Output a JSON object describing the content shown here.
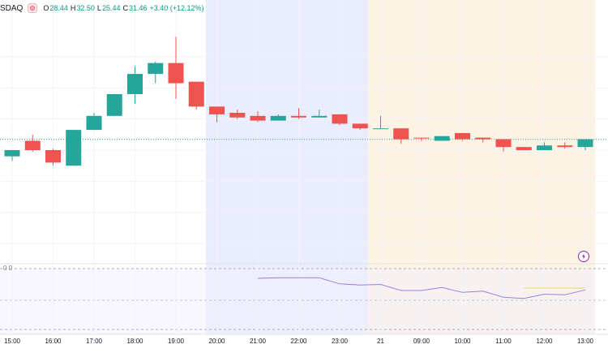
{
  "legend": {
    "symbol": "SDAQ",
    "open_label": "O",
    "open": "28.44",
    "high_label": "H",
    "high": "32.50",
    "low_label": "L",
    "low": "25.44",
    "close_label": "C",
    "close": "31.46",
    "change": "+3.40 (+12.12%)"
  },
  "indicator": {
    "name": "",
    "values": "0  0"
  },
  "colors": {
    "up": "#26a69a",
    "down": "#ef5350",
    "session_night": "#e9edfd",
    "session_pre": "#fdf3e4",
    "indicator_pane": "#f3f0fb",
    "indicator_line": "#9c7fe0"
  },
  "chart_data": {
    "type": "candlestick",
    "x_tick_labels": [
      "15:00",
      "16:00",
      "17:00",
      "18:00",
      "19:00",
      "20:00",
      "21:00",
      "22:00",
      "23:00",
      "21",
      "09:00",
      "10:00",
      "11:00",
      "12:00",
      "13:00"
    ],
    "price_range": [
      22,
      34
    ],
    "candles": [
      {
        "o": 27.6,
        "h": 28.0,
        "l": 27.3,
        "c": 28.0
      },
      {
        "o": 28.6,
        "h": 29.0,
        "l": 27.9,
        "c": 28.0
      },
      {
        "o": 28.0,
        "h": 28.1,
        "l": 27.0,
        "c": 27.2
      },
      {
        "o": 27.0,
        "h": 29.3,
        "l": 27.0,
        "c": 29.3
      },
      {
        "o": 29.3,
        "h": 30.4,
        "l": 29.3,
        "c": 30.2
      },
      {
        "o": 30.2,
        "h": 31.6,
        "l": 30.2,
        "c": 31.6
      },
      {
        "o": 31.6,
        "h": 33.4,
        "l": 31.0,
        "c": 32.9
      },
      {
        "o": 32.9,
        "h": 33.7,
        "l": 32.3,
        "c": 33.6
      },
      {
        "o": 33.6,
        "h": 35.3,
        "l": 31.3,
        "c": 32.3
      },
      {
        "o": 32.4,
        "h": 32.4,
        "l": 30.6,
        "c": 30.8
      },
      {
        "o": 30.8,
        "h": 30.8,
        "l": 29.8,
        "c": 30.3
      },
      {
        "o": 30.4,
        "h": 30.6,
        "l": 30.0,
        "c": 30.1
      },
      {
        "o": 30.2,
        "h": 30.5,
        "l": 29.8,
        "c": 29.9
      },
      {
        "o": 29.9,
        "h": 30.3,
        "l": 29.9,
        "c": 30.2
      },
      {
        "o": 30.2,
        "h": 30.7,
        "l": 30.0,
        "c": 30.1
      },
      {
        "o": 30.1,
        "h": 30.6,
        "l": 30.1,
        "c": 30.2
      },
      {
        "o": 30.3,
        "h": 30.3,
        "l": 29.6,
        "c": 29.7
      },
      {
        "o": 29.7,
        "h": 29.7,
        "l": 29.3,
        "c": 29.4
      },
      {
        "o": 29.4,
        "h": 30.2,
        "l": 29.4,
        "c": 29.4
      },
      {
        "o": 29.4,
        "h": 29.4,
        "l": 28.4,
        "c": 28.7
      },
      {
        "o": 28.8,
        "h": 28.8,
        "l": 28.6,
        "c": 28.75
      },
      {
        "o": 28.6,
        "h": 28.9,
        "l": 28.6,
        "c": 28.9
      },
      {
        "o": 29.1,
        "h": 29.1,
        "l": 28.6,
        "c": 28.7
      },
      {
        "o": 28.8,
        "h": 28.8,
        "l": 28.5,
        "c": 28.7
      },
      {
        "o": 28.7,
        "h": 28.7,
        "l": 27.9,
        "c": 28.2
      },
      {
        "o": 28.2,
        "h": 28.2,
        "l": 28.0,
        "c": 28.0
      },
      {
        "o": 28.0,
        "h": 28.5,
        "l": 28.0,
        "c": 28.3
      },
      {
        "o": 28.3,
        "h": 28.5,
        "l": 28.1,
        "c": 28.2
      },
      {
        "o": 28.2,
        "h": 28.7,
        "l": 28.0,
        "c": 28.7
      }
    ],
    "indicator_range": [
      0,
      100
    ],
    "indicator_series": [
      {
        "i": 12,
        "v": 84
      },
      {
        "i": 13,
        "v": 85
      },
      {
        "i": 14,
        "v": 85
      },
      {
        "i": 15,
        "v": 85
      },
      {
        "i": 16,
        "v": 75
      },
      {
        "i": 17,
        "v": 73
      },
      {
        "i": 18,
        "v": 74
      },
      {
        "i": 19,
        "v": 64
      },
      {
        "i": 20,
        "v": 64
      },
      {
        "i": 21,
        "v": 69
      },
      {
        "i": 22,
        "v": 61
      },
      {
        "i": 23,
        "v": 63
      },
      {
        "i": 24,
        "v": 53
      },
      {
        "i": 25,
        "v": 51
      },
      {
        "i": 26,
        "v": 58
      },
      {
        "i": 27,
        "v": 57
      },
      {
        "i": 28,
        "v": 65
      }
    ]
  }
}
